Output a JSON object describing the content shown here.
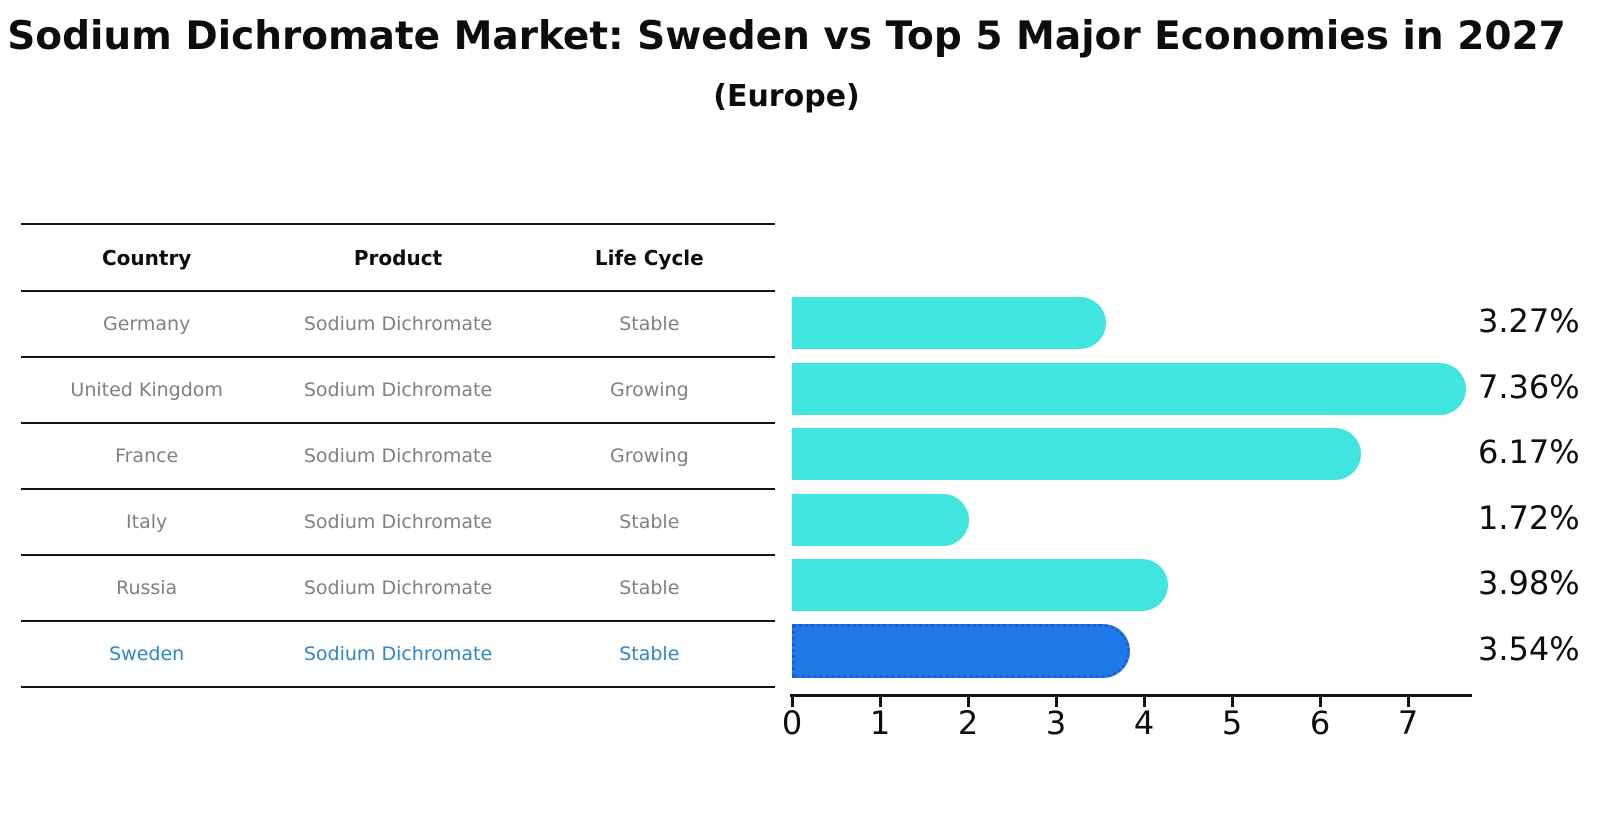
{
  "title": "Sodium Dichromate Market: Sweden vs Top 5 Major Economies in 2027",
  "subtitle": "(Europe)",
  "table": {
    "headers": [
      "Country",
      "Product",
      "Life Cycle"
    ],
    "rows": [
      {
        "country": "Germany",
        "product": "Sodium Dichromate",
        "life_cycle": "Stable",
        "highlight": false
      },
      {
        "country": "United Kingdom",
        "product": "Sodium Dichromate",
        "life_cycle": "Growing",
        "highlight": false
      },
      {
        "country": "France",
        "product": "Sodium Dichromate",
        "life_cycle": "Growing",
        "highlight": false
      },
      {
        "country": "Italy",
        "product": "Sodium Dichromate",
        "life_cycle": "Stable",
        "highlight": false
      },
      {
        "country": "Russia",
        "product": "Sodium Dichromate",
        "life_cycle": "Stable",
        "highlight": true
      }
    ]
  },
  "chart_data": {
    "type": "bar",
    "orientation": "horizontal",
    "title": "Sodium Dichromate Market: Sweden vs Top 5 Major Economies in 2027 (Europe)",
    "categories": [
      "Germany",
      "United Kingdom",
      "France",
      "Italy",
      "Russia",
      "Sweden"
    ],
    "values": [
      3.27,
      7.36,
      6.17,
      1.72,
      3.98,
      3.54
    ],
    "value_labels": [
      "3.27%",
      "7.36%",
      "6.17%",
      "1.72%",
      "3.98%",
      "3.54%"
    ],
    "xlabel": "",
    "ylabel": "",
    "xlim": [
      0,
      7.75
    ],
    "x_ticks": [
      0,
      1,
      2,
      3,
      4,
      5,
      6,
      7
    ],
    "grid": false,
    "legend": false,
    "highlight_category": "Sweden",
    "colors": {
      "bar": "#40e5df",
      "highlight_bar": "#2079e8",
      "highlight_bar_border": "#1663cf",
      "row_text": "#808080",
      "highlight_text": "#2e86c8",
      "axis": "#141414"
    }
  }
}
